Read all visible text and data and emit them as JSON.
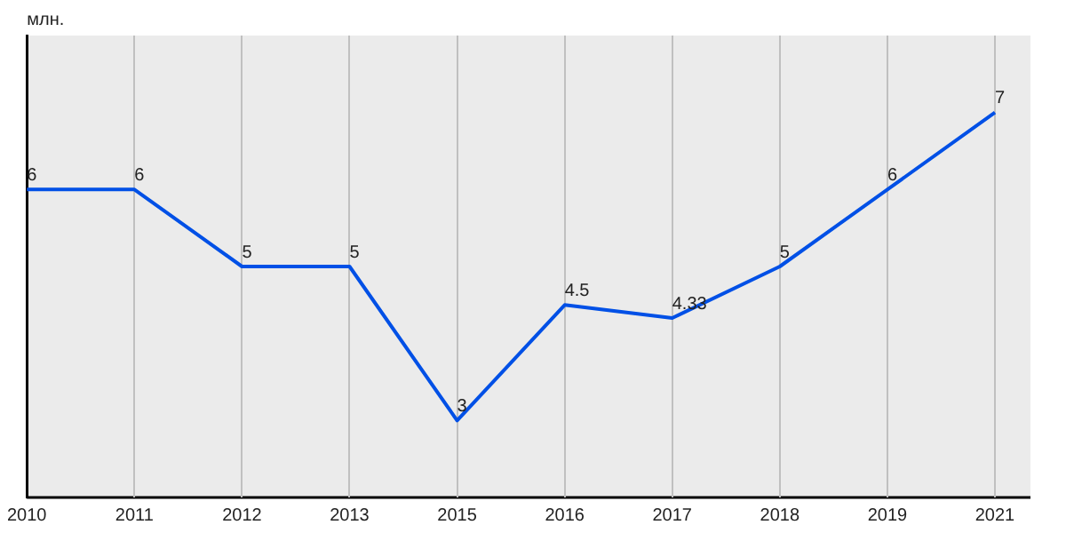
{
  "chart_data": {
    "type": "line",
    "ylabel": "млн.",
    "categories": [
      "2010",
      "2011",
      "2012",
      "2013",
      "2015",
      "2016",
      "2017",
      "2018",
      "2019",
      "2021"
    ],
    "series": [
      {
        "color": "#0050e6",
        "values": [
          6,
          6,
          5,
          5,
          3,
          4.5,
          4.33,
          5,
          6,
          7
        ]
      }
    ],
    "ylim": [
      2,
      8
    ],
    "grid": "x",
    "legend": false,
    "marker": "none",
    "line_style": "solid",
    "data_labels": true
  }
}
